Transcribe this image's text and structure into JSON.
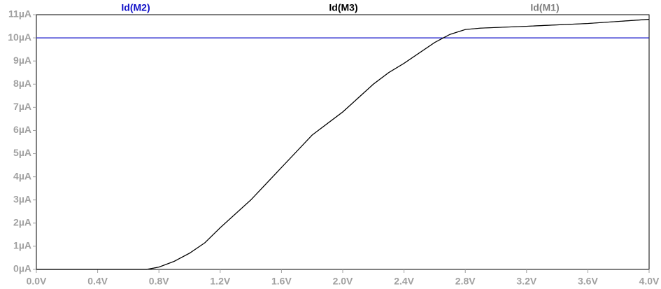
{
  "chart_data": {
    "type": "line",
    "x": [
      0,
      0.4,
      0.72,
      0.8,
      0.9,
      1.0,
      1.1,
      1.2,
      1.3,
      1.4,
      1.5,
      1.6,
      1.7,
      1.8,
      1.9,
      2.0,
      2.1,
      2.2,
      2.3,
      2.4,
      2.5,
      2.6,
      2.7,
      2.8,
      2.9,
      3.2,
      3.6,
      4.0
    ],
    "series": [
      {
        "name": "Id(M2)",
        "color": "#1010c8",
        "values": [
          10,
          10,
          10,
          10,
          10,
          10,
          10,
          10,
          10,
          10,
          10,
          10,
          10,
          10,
          10,
          10,
          10,
          10,
          10,
          10,
          10,
          10,
          10,
          10,
          10,
          10,
          10,
          10
        ]
      },
      {
        "name": "Id(M1)",
        "color": "#808080",
        "values": [
          0,
          0,
          0,
          0.1,
          0.35,
          0.7,
          1.15,
          1.8,
          2.4,
          3.0,
          3.7,
          4.4,
          5.1,
          5.8,
          6.3,
          6.8,
          7.4,
          8.0,
          8.5,
          8.9,
          9.35,
          9.8,
          10.15,
          10.36,
          10.42,
          10.5,
          10.62,
          10.8
        ]
      },
      {
        "name": "Id(M3)",
        "color": "#000000",
        "values": [
          0,
          0,
          0,
          0.1,
          0.35,
          0.7,
          1.15,
          1.8,
          2.4,
          3.0,
          3.7,
          4.4,
          5.1,
          5.8,
          6.3,
          6.8,
          7.4,
          8.0,
          8.5,
          8.9,
          9.35,
          9.8,
          10.15,
          10.36,
          10.42,
          10.5,
          10.62,
          10.8
        ]
      }
    ],
    "xlim": [
      0,
      4
    ],
    "xticks": [
      {
        "value": 0,
        "label": "0.0V"
      },
      {
        "value": 0.4,
        "label": "0.4V"
      },
      {
        "value": 0.8,
        "label": "0.8V"
      },
      {
        "value": 1.2,
        "label": "1.2V"
      },
      {
        "value": 1.6,
        "label": "1.6V"
      },
      {
        "value": 2.0,
        "label": "2.0V"
      },
      {
        "value": 2.4,
        "label": "2.4V"
      },
      {
        "value": 2.8,
        "label": "2.8V"
      },
      {
        "value": 3.2,
        "label": "3.2V"
      },
      {
        "value": 3.6,
        "label": "3.6V"
      },
      {
        "value": 4.0,
        "label": "4.0V"
      }
    ],
    "ylim": [
      0,
      11
    ],
    "yticks": [
      {
        "value": 0,
        "label": "0µA"
      },
      {
        "value": 1,
        "label": "1µA"
      },
      {
        "value": 2,
        "label": "2µA"
      },
      {
        "value": 3,
        "label": "3µA"
      },
      {
        "value": 4,
        "label": "4µA"
      },
      {
        "value": 5,
        "label": "5µA"
      },
      {
        "value": 6,
        "label": "6µA"
      },
      {
        "value": 7,
        "label": "7µA"
      },
      {
        "value": 8,
        "label": "8µA"
      },
      {
        "value": 9,
        "label": "9µA"
      },
      {
        "value": 10,
        "label": "10µA"
      },
      {
        "value": 11,
        "label": "11µA"
      }
    ]
  }
}
